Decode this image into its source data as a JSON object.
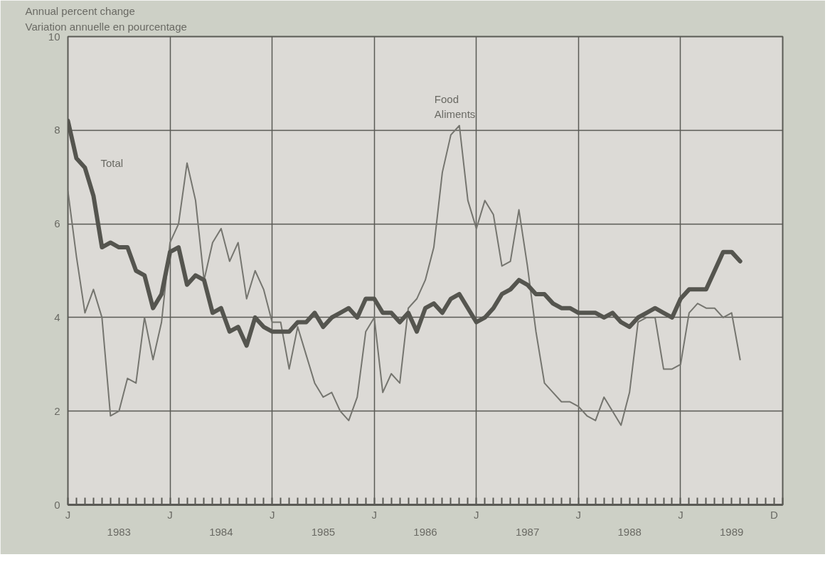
{
  "chart_data": {
    "type": "line",
    "ylabel": "Annual percent change\nVariation annuelle en pourcentage",
    "x": [
      "1983-01",
      "1983-02",
      "1983-03",
      "1983-04",
      "1983-05",
      "1983-06",
      "1983-07",
      "1983-08",
      "1983-09",
      "1983-10",
      "1983-11",
      "1983-12",
      "1984-01",
      "1984-02",
      "1984-03",
      "1984-04",
      "1984-05",
      "1984-06",
      "1984-07",
      "1984-08",
      "1984-09",
      "1984-10",
      "1984-11",
      "1984-12",
      "1985-01",
      "1985-02",
      "1985-03",
      "1985-04",
      "1985-05",
      "1985-06",
      "1985-07",
      "1985-08",
      "1985-09",
      "1985-10",
      "1985-11",
      "1985-12",
      "1986-01",
      "1986-02",
      "1986-03",
      "1986-04",
      "1986-05",
      "1986-06",
      "1986-07",
      "1986-08",
      "1986-09",
      "1986-10",
      "1986-11",
      "1986-12",
      "1987-01",
      "1987-02",
      "1987-03",
      "1987-04",
      "1987-05",
      "1987-06",
      "1987-07",
      "1987-08",
      "1987-09",
      "1987-10",
      "1987-11",
      "1987-12",
      "1988-01",
      "1988-02",
      "1988-03",
      "1988-04",
      "1988-05",
      "1988-06",
      "1988-07",
      "1988-08",
      "1988-09",
      "1988-10",
      "1988-11",
      "1988-12",
      "1989-01",
      "1989-02",
      "1989-03",
      "1989-04",
      "1989-05",
      "1989-06",
      "1989-07",
      "1989-08"
    ],
    "series": [
      {
        "name": "Food\nAliments",
        "color": "#75756f",
        "values": [
          6.7,
          5.3,
          4.1,
          4.6,
          4.0,
          1.9,
          2.0,
          2.7,
          2.6,
          4.0,
          3.1,
          3.9,
          5.6,
          6.0,
          7.3,
          6.5,
          4.8,
          5.6,
          5.9,
          5.2,
          5.6,
          4.4,
          5.0,
          4.6,
          3.9,
          3.9,
          2.9,
          3.8,
          3.2,
          2.6,
          2.3,
          2.4,
          2.0,
          1.8,
          2.3,
          3.7,
          4.0,
          2.4,
          2.8,
          2.6,
          4.2,
          4.4,
          4.8,
          5.5,
          7.1,
          7.9,
          8.1,
          6.5,
          5.9,
          6.5,
          6.2,
          5.1,
          5.2,
          6.3,
          5.1,
          3.7,
          2.6,
          2.4,
          2.2,
          2.2,
          2.1,
          1.9,
          1.8,
          2.3,
          2.0,
          1.7,
          2.4,
          3.9,
          4.0,
          4.0,
          2.9,
          2.9,
          3.0,
          4.1,
          4.3,
          4.2,
          4.2,
          4.0,
          4.1,
          3.1
        ]
      },
      {
        "name": "Total",
        "color": "#55554f",
        "values": [
          8.2,
          7.4,
          7.2,
          6.6,
          5.5,
          5.6,
          5.5,
          5.5,
          5.0,
          4.9,
          4.2,
          4.5,
          5.4,
          5.5,
          4.7,
          4.9,
          4.8,
          4.1,
          4.2,
          3.7,
          3.8,
          3.4,
          4.0,
          3.8,
          3.7,
          3.7,
          3.7,
          3.9,
          3.9,
          4.1,
          3.8,
          4.0,
          4.1,
          4.2,
          4.0,
          4.4,
          4.4,
          4.1,
          4.1,
          3.9,
          4.1,
          3.7,
          4.2,
          4.3,
          4.1,
          4.4,
          4.5,
          4.2,
          3.9,
          4.0,
          4.2,
          4.5,
          4.6,
          4.8,
          4.7,
          4.5,
          4.5,
          4.3,
          4.2,
          4.2,
          4.1,
          4.1,
          4.1,
          4.0,
          4.1,
          3.9,
          3.8,
          4.0,
          4.1,
          4.2,
          4.1,
          4.0,
          4.4,
          4.6,
          4.6,
          4.6,
          5.0,
          5.4,
          5.4,
          5.2
        ]
      }
    ],
    "xlim": [
      "1983-01",
      "1990-01"
    ],
    "annotations": [
      "J",
      "J",
      "J",
      "J",
      "J",
      "J",
      "J",
      "D"
    ],
    "xticks": [
      {
        "value": "1983-01",
        "label": null
      },
      {
        "value": "1984-01",
        "label": null
      },
      {
        "value": "1985-01",
        "label": null
      },
      {
        "value": "1986-01",
        "label": null
      },
      {
        "value": "1987-01",
        "label": null
      },
      {
        "value": "1988-01",
        "label": null
      },
      {
        "value": "1989-01",
        "label": null
      },
      {
        "value": "1989-12",
        "label": null
      },
      {
        "value": "1983-07",
        "label": "1983"
      },
      {
        "value": "1984-07",
        "label": "1984"
      },
      {
        "value": "1985-07",
        "label": "1985"
      },
      {
        "value": "1986-07",
        "label": "1986"
      },
      {
        "value": "1987-07",
        "label": "1987"
      },
      {
        "value": "1988-07",
        "label": "1988"
      },
      {
        "value": "1989-07",
        "label": "1989"
      }
    ],
    "ylim": [
      0,
      10
    ],
    "yticks": [
      0,
      2,
      4,
      6,
      8,
      10
    ],
    "grid": true,
    "marker": "none",
    "line_style": "solid"
  }
}
